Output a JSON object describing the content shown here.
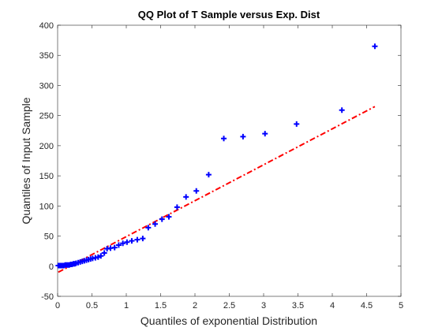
{
  "chart_data": {
    "type": "scatter",
    "title": "QQ Plot of T Sample versus Exp. Dist",
    "xlabel": "Quantiles of exponential Distribution",
    "ylabel": "Quantiles of Input Sample",
    "xlim": [
      0,
      5
    ],
    "ylim": [
      -50,
      400
    ],
    "xticks": [
      0,
      0.5,
      1,
      1.5,
      2,
      2.5,
      3,
      3.5,
      4,
      4.5,
      5
    ],
    "yticks": [
      -50,
      0,
      50,
      100,
      150,
      200,
      250,
      300,
      350,
      400
    ],
    "xtick_labels": [
      "0",
      "0.5",
      "1",
      "1.5",
      "2",
      "2.5",
      "3",
      "3.5",
      "4",
      "4.5",
      "5"
    ],
    "ytick_labels": [
      "-50",
      "0",
      "50",
      "100",
      "150",
      "200",
      "250",
      "300",
      "350",
      "400"
    ],
    "grid": false,
    "series": [
      {
        "marker": "+",
        "color": "#0000ff",
        "points": [
          {
            "x": 0.01,
            "y": 1
          },
          {
            "x": 0.03,
            "y": 1
          },
          {
            "x": 0.05,
            "y": 1
          },
          {
            "x": 0.07,
            "y": 1
          },
          {
            "x": 0.09,
            "y": 1
          },
          {
            "x": 0.11,
            "y": 2
          },
          {
            "x": 0.13,
            "y": 2
          },
          {
            "x": 0.15,
            "y": 2
          },
          {
            "x": 0.17,
            "y": 2
          },
          {
            "x": 0.19,
            "y": 3
          },
          {
            "x": 0.21,
            "y": 3
          },
          {
            "x": 0.23,
            "y": 4
          },
          {
            "x": 0.25,
            "y": 4
          },
          {
            "x": 0.27,
            "y": 5
          },
          {
            "x": 0.3,
            "y": 6
          },
          {
            "x": 0.33,
            "y": 7
          },
          {
            "x": 0.36,
            "y": 8
          },
          {
            "x": 0.39,
            "y": 9
          },
          {
            "x": 0.42,
            "y": 10
          },
          {
            "x": 0.45,
            "y": 11
          },
          {
            "x": 0.48,
            "y": 12
          },
          {
            "x": 0.51,
            "y": 13
          },
          {
            "x": 0.55,
            "y": 14
          },
          {
            "x": 0.59,
            "y": 15
          },
          {
            "x": 0.63,
            "y": 17
          },
          {
            "x": 0.68,
            "y": 22
          },
          {
            "x": 0.72,
            "y": 29
          },
          {
            "x": 0.77,
            "y": 30
          },
          {
            "x": 0.83,
            "y": 31
          },
          {
            "x": 0.89,
            "y": 35
          },
          {
            "x": 0.95,
            "y": 38
          },
          {
            "x": 1.01,
            "y": 40
          },
          {
            "x": 1.08,
            "y": 42
          },
          {
            "x": 1.16,
            "y": 44
          },
          {
            "x": 1.24,
            "y": 46
          },
          {
            "x": 1.32,
            "y": 64
          },
          {
            "x": 1.42,
            "y": 70
          },
          {
            "x": 1.52,
            "y": 78
          },
          {
            "x": 1.62,
            "y": 82
          },
          {
            "x": 1.74,
            "y": 98
          },
          {
            "x": 1.87,
            "y": 115
          },
          {
            "x": 2.02,
            "y": 125
          },
          {
            "x": 2.2,
            "y": 152
          },
          {
            "x": 2.42,
            "y": 212
          },
          {
            "x": 2.7,
            "y": 215
          },
          {
            "x": 3.02,
            "y": 220
          },
          {
            "x": 3.48,
            "y": 236
          },
          {
            "x": 4.14,
            "y": 259
          },
          {
            "x": 4.62,
            "y": 365
          }
        ]
      },
      {
        "type": "reference-line",
        "style": "dash-dot",
        "color": "#ff0000",
        "points": [
          {
            "x": 0.01,
            "y": -10
          },
          {
            "x": 4.62,
            "y": 265
          }
        ]
      }
    ]
  }
}
